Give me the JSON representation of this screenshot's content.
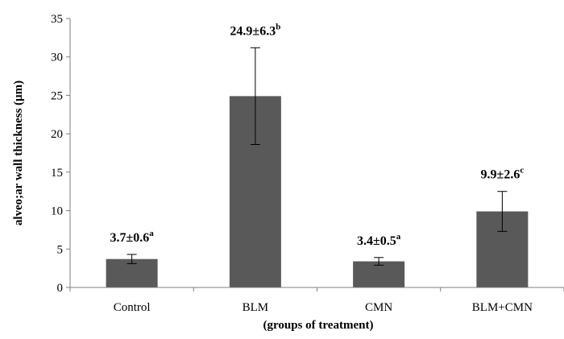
{
  "chart_data": {
    "type": "bar",
    "title": "",
    "xlabel": "(groups of treatment)",
    "ylabel": "alveo;ar wall thickness (μm)",
    "ylim": [
      0,
      35
    ],
    "yticks": [
      0,
      5,
      10,
      15,
      20,
      25,
      30,
      35
    ],
    "grid": false,
    "legend": "none",
    "bar_color": "#595959",
    "categories": [
      "Control",
      "BLM",
      "CMN",
      "BLM+CMN"
    ],
    "values": [
      3.7,
      24.9,
      3.4,
      9.9
    ],
    "errors": [
      0.6,
      6.3,
      0.5,
      2.6
    ],
    "data_labels": [
      {
        "text": "3.7±0.6",
        "sup": "a"
      },
      {
        "text": "24.9±6.3",
        "sup": "b"
      },
      {
        "text": "3.4±0.5",
        "sup": "a"
      },
      {
        "text": "9.9±2.6",
        "sup": "c"
      }
    ]
  }
}
